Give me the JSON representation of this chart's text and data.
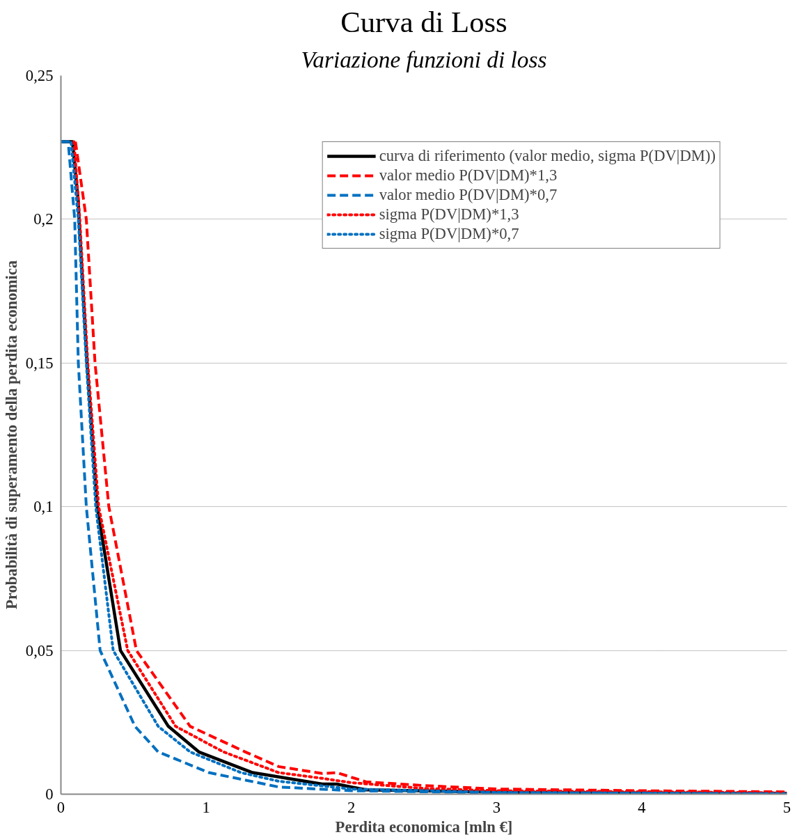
{
  "chart_data": {
    "type": "line",
    "title": "Curva di Loss",
    "subtitle": "Variazione funzioni di loss",
    "xlabel": "Perdita economica [mln €]",
    "ylabel": "Probabilità di superamento della perdita economica",
    "xlim": [
      0,
      5
    ],
    "ylim": [
      0,
      0.25
    ],
    "xticks": [
      0,
      1,
      2,
      3,
      4,
      5
    ],
    "yticks": [
      {
        "value": 0,
        "label": "0"
      },
      {
        "value": 0.05,
        "label": "0,05"
      },
      {
        "value": 0.1,
        "label": "0,1"
      },
      {
        "value": 0.15,
        "label": "0,15"
      },
      {
        "value": 0.2,
        "label": "0,2"
      },
      {
        "value": 0.25,
        "label": "0,25"
      }
    ],
    "grid": "y",
    "legend": "top right",
    "marker": "none",
    "series": [
      {
        "name": "curva di riferimento (valor medio, sigma P(DV|DM))",
        "color": "#000000",
        "line_style": "solid",
        "x": [
          0,
          0.08,
          0.12,
          0.125,
          0.18,
          0.25,
          0.41,
          0.74,
          0.95,
          1.32,
          1.8,
          1.9,
          2.1,
          3,
          4,
          5
        ],
        "values": [
          0.227,
          0.227,
          0.206,
          0.2,
          0.15,
          0.1,
          0.05,
          0.0236,
          0.0147,
          0.0075,
          0.0035,
          0.0035,
          0.0015,
          0.0007,
          0.0004,
          0.0003
        ]
      },
      {
        "name": "valor medio P(DV|DM)*1,3",
        "color": "#ff0000",
        "line_style": "dashed",
        "x": [
          0.1,
          0.175,
          0.235,
          0.33,
          0.52,
          0.89,
          1.27,
          1.5,
          1.8,
          1.9,
          2.1,
          2.5,
          3,
          4,
          5
        ],
        "values": [
          0.227,
          0.2,
          0.15,
          0.1,
          0.05,
          0.0236,
          0.0147,
          0.0096,
          0.0072,
          0.0075,
          0.0043,
          0.003,
          0.0018,
          0.0012,
          0.0008
        ]
      },
      {
        "name": "valor medio P(DV|DM)*0,7",
        "color": "#0070c0",
        "line_style": "dashed",
        "x": [
          0,
          0.05,
          0.095,
          0.12,
          0.175,
          0.27,
          0.51,
          0.67,
          1.02,
          1.5,
          2,
          3,
          5
        ],
        "values": [
          0.227,
          0.227,
          0.2,
          0.15,
          0.1,
          0.05,
          0.0236,
          0.0147,
          0.0075,
          0.0025,
          0.0012,
          0.0005,
          0.0002
        ]
      },
      {
        "name": "sigma P(DV|DM)*1,3",
        "color": "#ff0000",
        "line_style": "dotted",
        "x": [
          0.09,
          0.13,
          0.185,
          0.26,
          0.46,
          0.79,
          1.12,
          1.5,
          1.8,
          2,
          2.5,
          3,
          5
        ],
        "values": [
          0.227,
          0.2,
          0.15,
          0.1,
          0.05,
          0.0236,
          0.0147,
          0.0075,
          0.0055,
          0.004,
          0.002,
          0.0012,
          0.0005
        ]
      },
      {
        "name": "sigma P(DV|DM)*0,7",
        "color": "#0070c0",
        "line_style": "dotted",
        "x": [
          0,
          0.07,
          0.12,
          0.175,
          0.24,
          0.36,
          0.67,
          0.89,
          1.24,
          1.5,
          2,
          3,
          5
        ],
        "values": [
          0.227,
          0.227,
          0.2,
          0.15,
          0.1,
          0.05,
          0.0236,
          0.0147,
          0.0075,
          0.0045,
          0.0018,
          0.0006,
          0.0002
        ]
      }
    ]
  }
}
